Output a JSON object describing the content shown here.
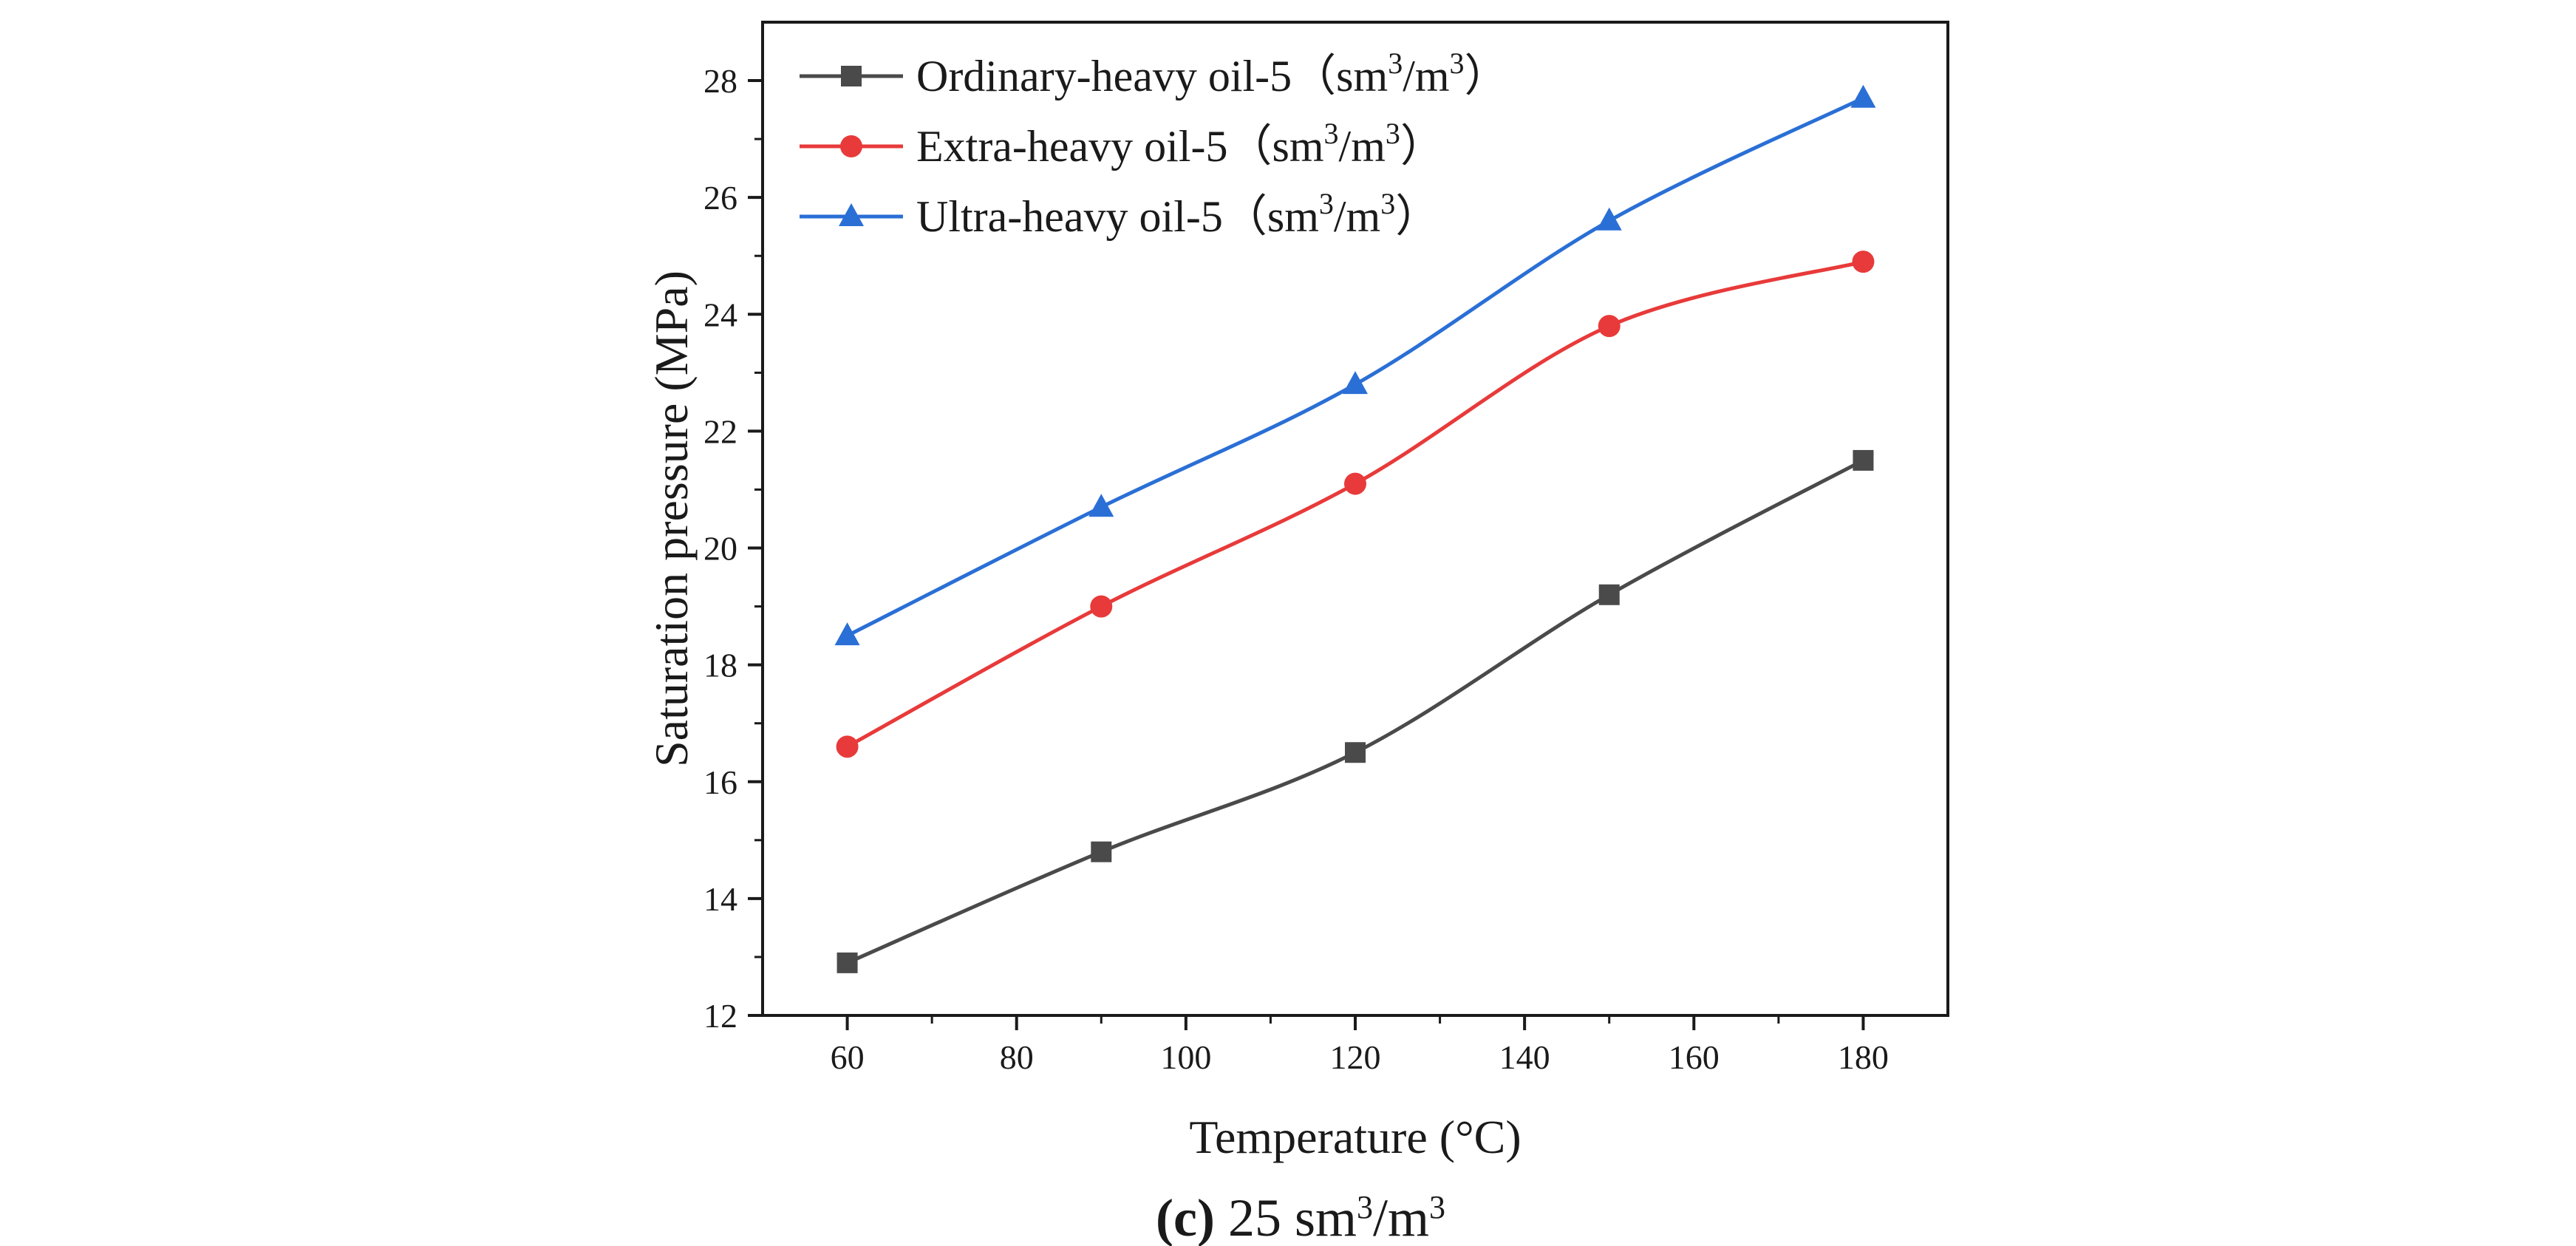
{
  "chart_data": {
    "type": "line",
    "title": "",
    "xlabel": "Temperature (°C)",
    "ylabel": "Saturation pressure (MPa)",
    "xlim": [
      50,
      190
    ],
    "ylim": [
      12,
      29
    ],
    "x": [
      60,
      90,
      120,
      150,
      180
    ],
    "xticks": [
      60,
      80,
      100,
      120,
      140,
      160,
      180
    ],
    "yticks": [
      12,
      14,
      16,
      18,
      20,
      22,
      24,
      26,
      28
    ],
    "xtick_labels": [
      "60",
      "80",
      "100",
      "120",
      "140",
      "160",
      "180"
    ],
    "ytick_labels": [
      "12",
      "14",
      "16",
      "18",
      "20",
      "22",
      "24",
      "26",
      "28"
    ],
    "grid": false,
    "legend_position": "top-left",
    "series": [
      {
        "name": "Ordinary-heavy oil-5",
        "unit_base": "sm",
        "unit_mid": "/m",
        "unit_exp": "3",
        "color": "#4a4a4a",
        "marker": "square",
        "values": [
          12.9,
          14.8,
          16.5,
          19.2,
          21.5
        ]
      },
      {
        "name": "Extra-heavy oil-5",
        "unit_base": "sm",
        "unit_mid": "/m",
        "unit_exp": "3",
        "color": "#e83a3a",
        "marker": "circle",
        "values": [
          16.6,
          19.0,
          21.1,
          23.8,
          24.9
        ]
      },
      {
        "name": "Ultra-heavy oil-5",
        "unit_base": "sm",
        "unit_mid": "/m",
        "unit_exp": "3",
        "color": "#2a6fd6",
        "marker": "triangle",
        "values": [
          18.5,
          20.7,
          22.8,
          25.6,
          27.7
        ]
      }
    ],
    "legend_paren_open": "（",
    "legend_paren_close": "）",
    "caption": {
      "label": "(c)",
      "text": " 25 sm",
      "mid": "/m",
      "exp": "3"
    }
  }
}
